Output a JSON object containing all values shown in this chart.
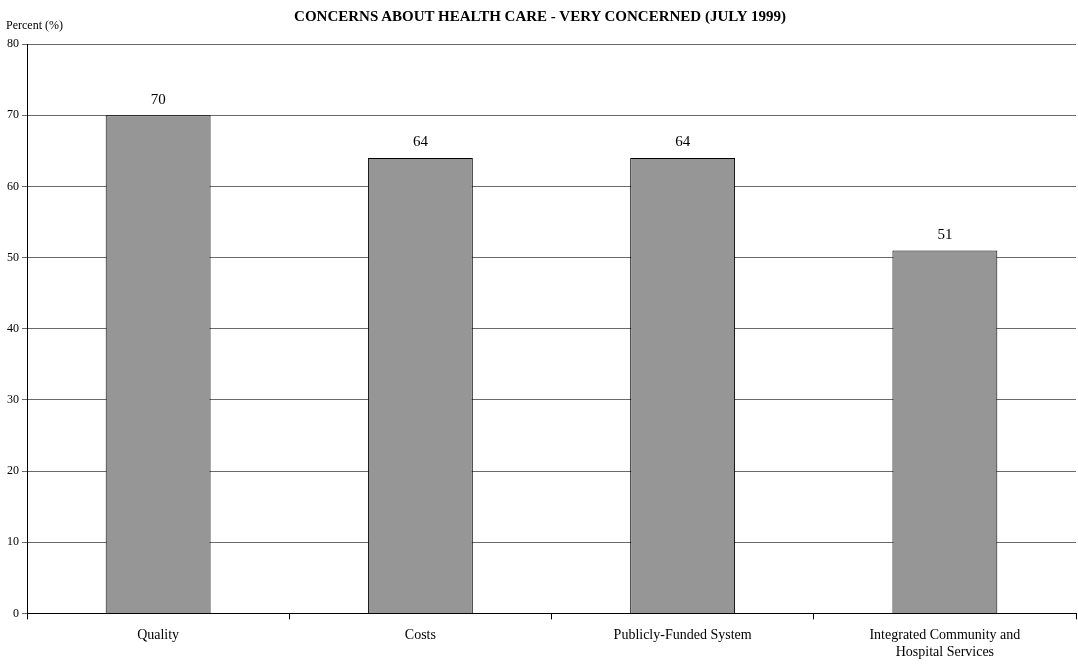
{
  "chart_data": {
    "type": "bar",
    "title": "CONCERNS ABOUT HEALTH CARE - VERY CONCERNED (JULY 1999)",
    "ylabel": "Percent (%)",
    "categories": [
      "Quality",
      "Costs",
      "Publicly-Funded System",
      "Integrated Community and Hospital Services"
    ],
    "values": [
      70,
      64,
      64,
      51
    ],
    "color": "#969696",
    "ylim": [
      0,
      80
    ],
    "yticks": [
      0,
      10,
      20,
      30,
      40,
      50,
      60,
      70,
      80
    ],
    "grid": "y",
    "data_labels": true,
    "legend": false
  }
}
